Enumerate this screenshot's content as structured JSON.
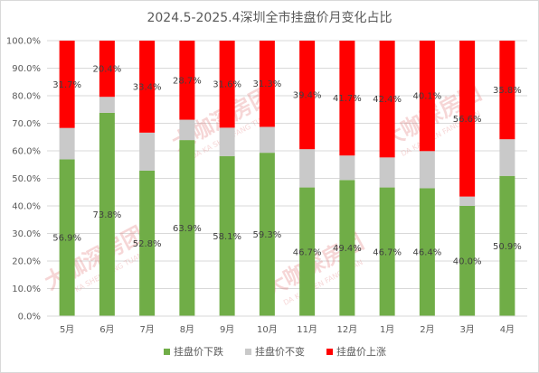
{
  "chart_data": {
    "type": "bar",
    "stacked": true,
    "percent_stacked": true,
    "title": "2024.5-2025.4深圳全市挂盘价月变化占比",
    "xlabel": "",
    "ylabel": "",
    "categories": [
      "5月",
      "6月",
      "7月",
      "8月",
      "9月",
      "10月",
      "11月",
      "12月",
      "1月",
      "2月",
      "3月",
      "4月"
    ],
    "series": [
      {
        "name": "挂盘价下跌",
        "color": "#70ad47",
        "values": [
          56.9,
          73.8,
          52.8,
          63.9,
          58.1,
          59.3,
          46.7,
          49.4,
          46.7,
          46.4,
          40.0,
          50.9
        ],
        "labels": [
          "56.9%",
          "73.8%",
          "52.8%",
          "63.9%",
          "58.1%",
          "59.3%",
          "46.7%",
          "49.4%",
          "46.7%",
          "46.4%",
          "40.0%",
          "50.9%"
        ]
      },
      {
        "name": "挂盘价不变",
        "color": "#c9c9c9",
        "values": [
          11.4,
          5.8,
          13.8,
          7.4,
          10.3,
          9.4,
          13.9,
          8.9,
          10.9,
          13.5,
          3.4,
          13.3
        ],
        "labels": []
      },
      {
        "name": "挂盘价上涨",
        "color": "#ff0000",
        "values": [
          31.7,
          20.4,
          33.4,
          28.7,
          31.6,
          31.3,
          39.4,
          41.7,
          42.4,
          40.1,
          56.6,
          35.8
        ],
        "labels": [
          "31.7%",
          "20.4%",
          "33.4%",
          "28.7%",
          "31.6%",
          "31.3%",
          "39.4%",
          "41.7%",
          "42.4%",
          "40.1%",
          "56.6%",
          "35.8%"
        ]
      }
    ],
    "ylim": [
      0,
      100
    ],
    "yticks": [
      "0.0%",
      "10.0%",
      "20.0%",
      "30.0%",
      "40.0%",
      "50.0%",
      "60.0%",
      "70.0%",
      "80.0%",
      "90.0%",
      "100.0%"
    ],
    "grid": true,
    "legend_position": "bottom"
  },
  "watermark": {
    "main": "大咖深房团",
    "sub": "DA KA SHEN FANG TUAN"
  }
}
